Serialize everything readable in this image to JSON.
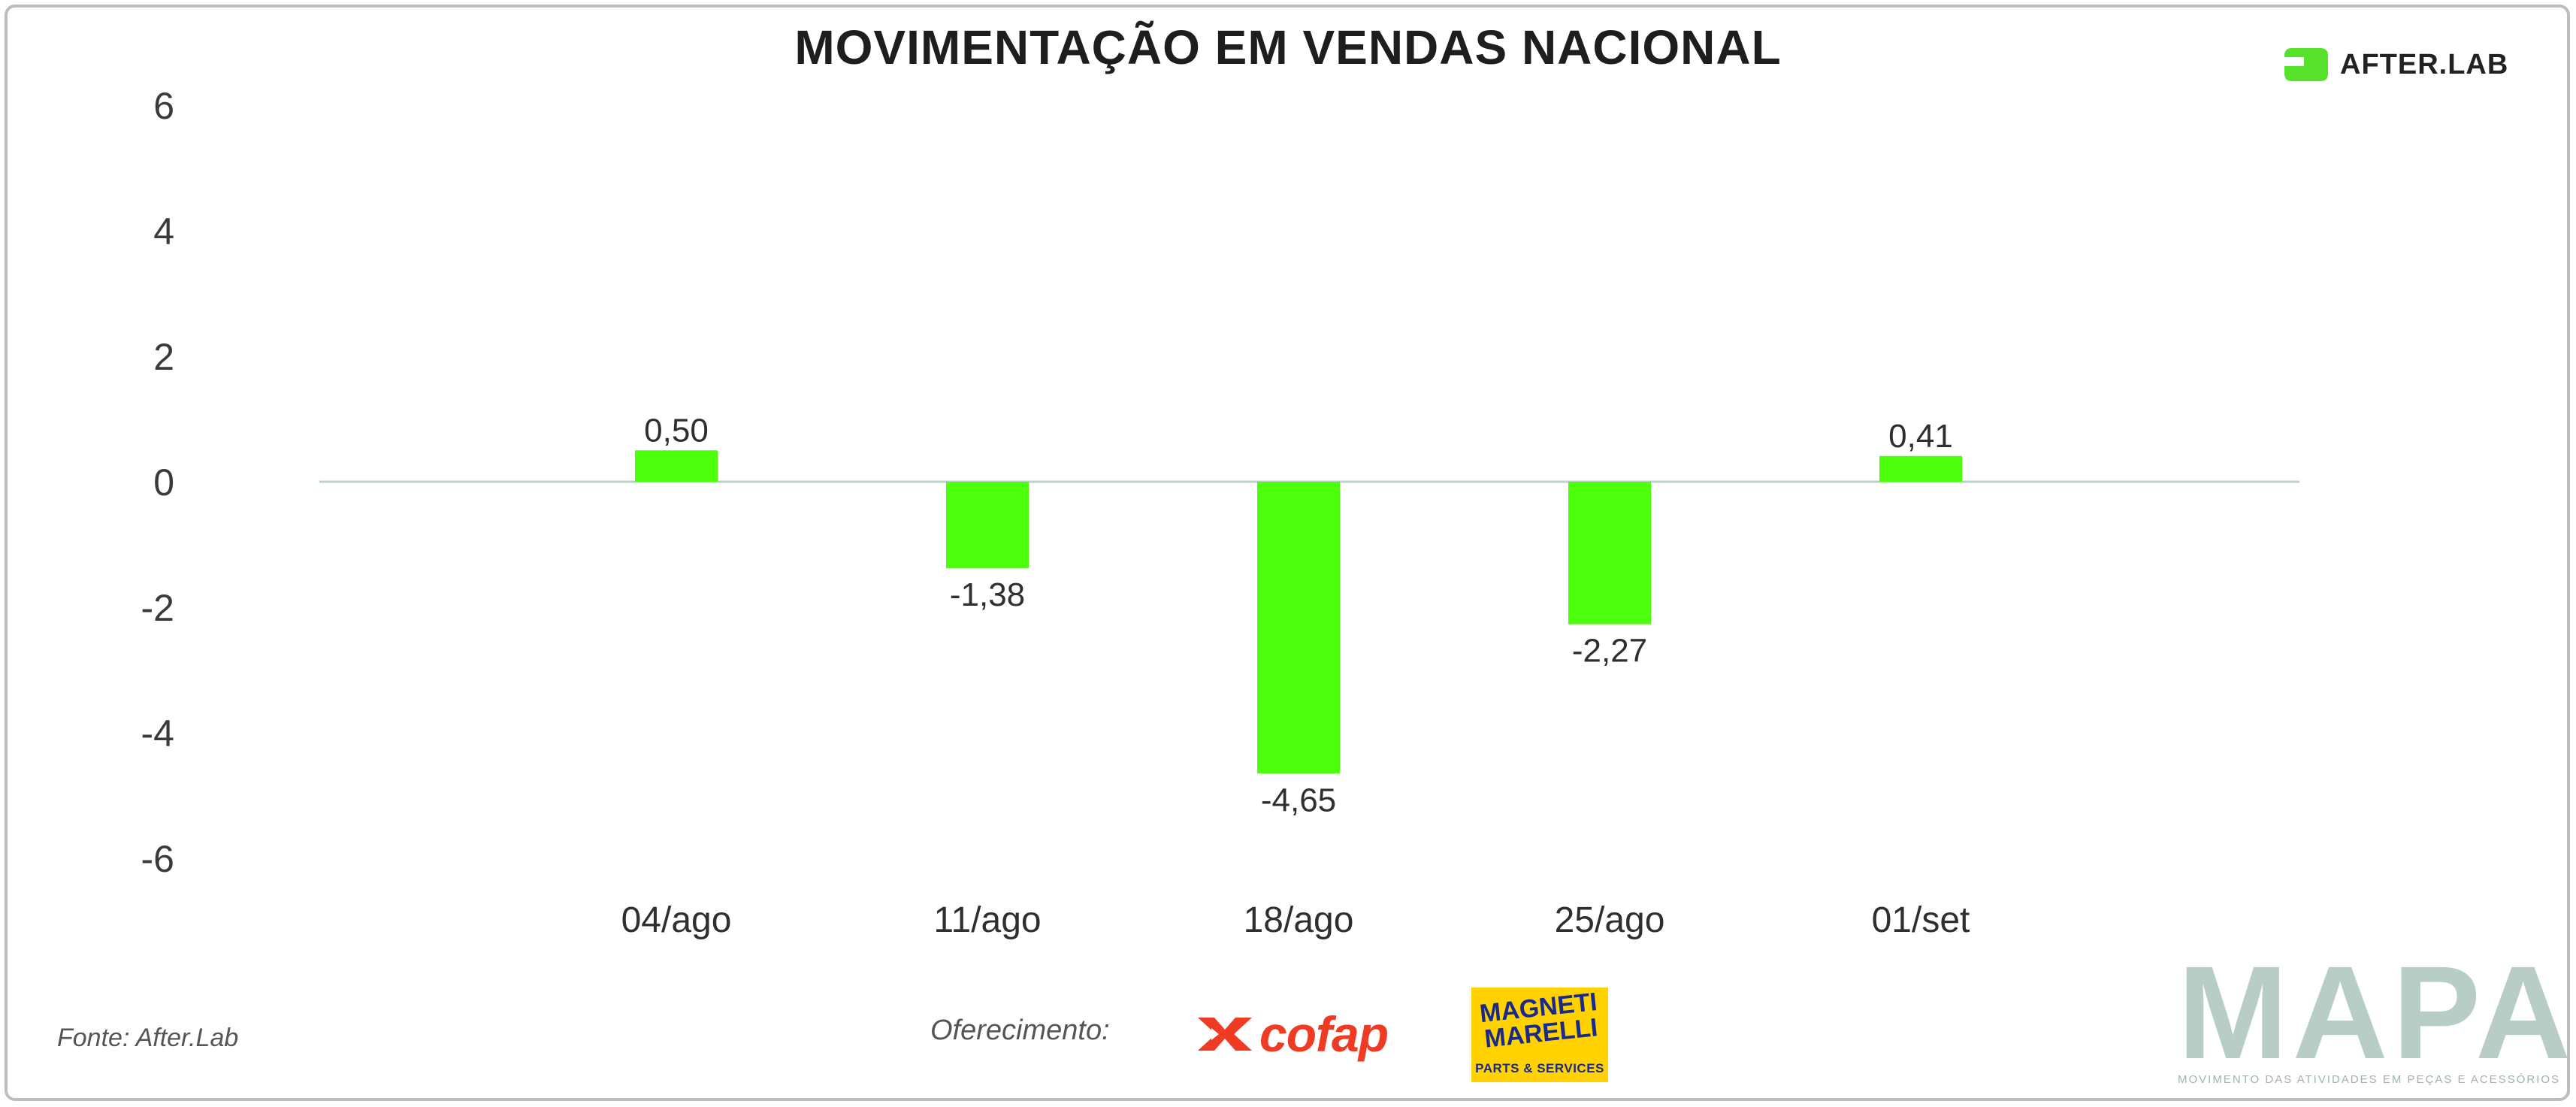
{
  "title": "MOVIMENTAÇÃO EM VENDAS NACIONAL",
  "brand": {
    "afterlab_label": "AFTER.LAB",
    "afterlab_color": "#57e12a",
    "mapa_word": "MAPA",
    "mapa_tagline": "MOVIMENTO DAS ATIVIDADES EM PEÇAS E ACESSÓRIOS"
  },
  "footer": {
    "source": "Fonte: After.Lab",
    "sponsor_label": "Oferecimento:",
    "cofap_label": "cofap",
    "magneti_label": "MAGNETI MARELLI",
    "magneti_sub": "PARTS & SERVICES"
  },
  "colors": {
    "bar": "#4cff0a",
    "zero_line": "#b9d3cc",
    "cofap": "#ef3b24",
    "magneti_bg": "#ffd200"
  },
  "chart_data": {
    "type": "bar",
    "title": "MOVIMENTAÇÃO EM VENDAS NACIONAL",
    "categories": [
      "04/ago",
      "11/ago",
      "18/ago",
      "25/ago",
      "01/set"
    ],
    "values": [
      0.5,
      -1.38,
      -4.65,
      -2.27,
      0.41
    ],
    "value_labels": [
      "0,50",
      "-1,38",
      "-4,65",
      "-2,27",
      "0,41"
    ],
    "yticks": [
      6,
      4,
      2,
      0,
      -2,
      -4,
      -6
    ],
    "ylim": [
      -6,
      6
    ],
    "xlabel": "",
    "ylabel": "",
    "grid": false,
    "legend": "none"
  }
}
